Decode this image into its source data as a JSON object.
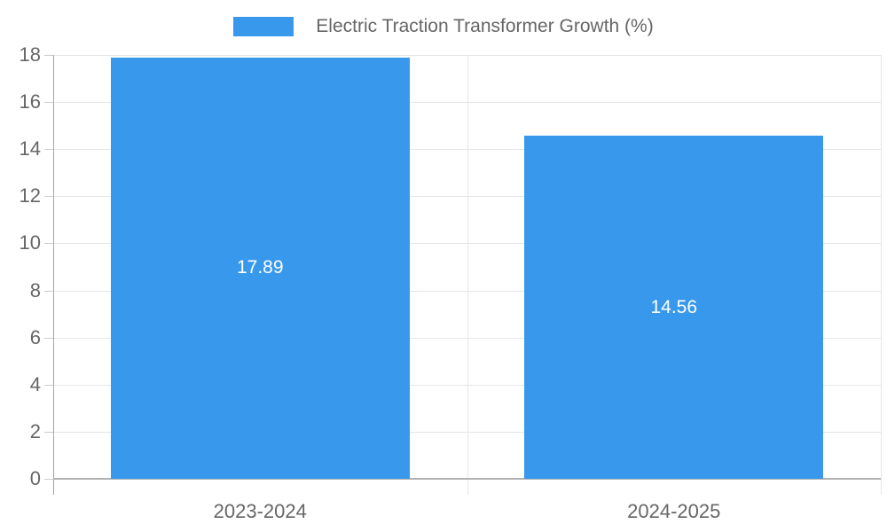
{
  "chart_data": {
    "type": "bar",
    "title": "",
    "xlabel": "",
    "ylabel": "",
    "categories": [
      "2023-2024",
      "2024-2025"
    ],
    "values": [
      17.89,
      14.56
    ],
    "data_labels": [
      "17.89",
      "14.56"
    ],
    "ylim": [
      0,
      18
    ],
    "ytick_step": 2,
    "yticks": [
      0,
      2,
      4,
      6,
      8,
      10,
      12,
      14,
      16,
      18
    ],
    "grid": true,
    "legend": {
      "position": "top",
      "label": "Electric Traction Transformer Growth (%)"
    },
    "colors": {
      "bar": "#3899ec",
      "bar_label_text": "#ffffff",
      "axis_text": "#666666",
      "gridline": "#e6e6e6",
      "axis_line": "#a6a6a6",
      "baseline": "#b1b1b1",
      "tick_mark": "#cccccc"
    }
  }
}
